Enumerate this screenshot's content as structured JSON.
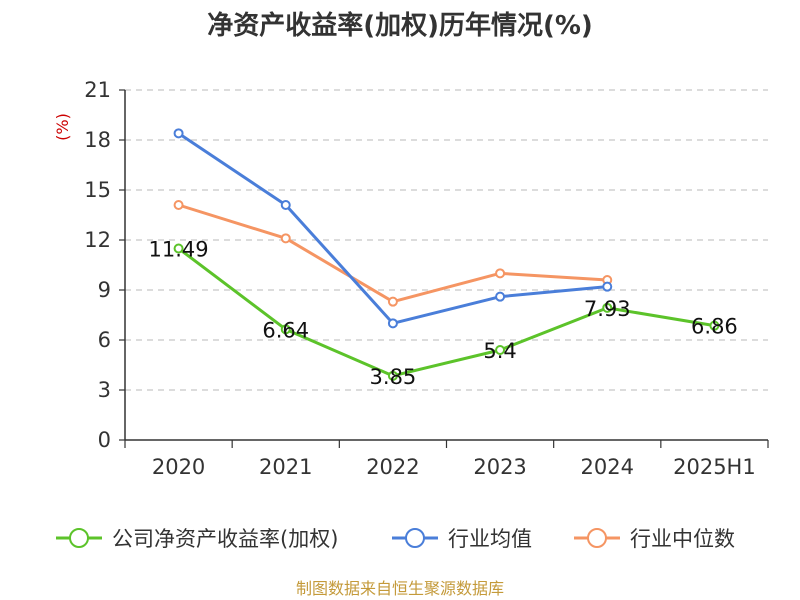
{
  "chart_data": {
    "type": "line",
    "title": "净资产收益率(加权)历年情况(%)",
    "ylabel": "(%)",
    "categories": [
      "2020",
      "2021",
      "2022",
      "2023",
      "2024",
      "2025H1"
    ],
    "ylim": [
      0,
      21
    ],
    "yticks": [
      0,
      3,
      6,
      9,
      12,
      15,
      18,
      21
    ],
    "grid": true,
    "legend_position": "bottom",
    "series": [
      {
        "name": "公司净资产收益率(加权)",
        "color": "#5cc32a",
        "values": [
          11.49,
          6.64,
          3.85,
          5.4,
          7.93,
          6.86
        ],
        "labels": [
          "11.49",
          "6.64",
          "3.85",
          "5.4",
          "7.93",
          "6.86"
        ]
      },
      {
        "name": "行业均值",
        "color": "#4a7ed9",
        "values": [
          18.4,
          14.1,
          7.0,
          8.6,
          9.2,
          null
        ]
      },
      {
        "name": "行业中位数",
        "color": "#f59563",
        "values": [
          14.1,
          12.1,
          8.3,
          10.0,
          9.6,
          null
        ]
      }
    ],
    "source": "制图数据来自恒生聚源数据库"
  }
}
